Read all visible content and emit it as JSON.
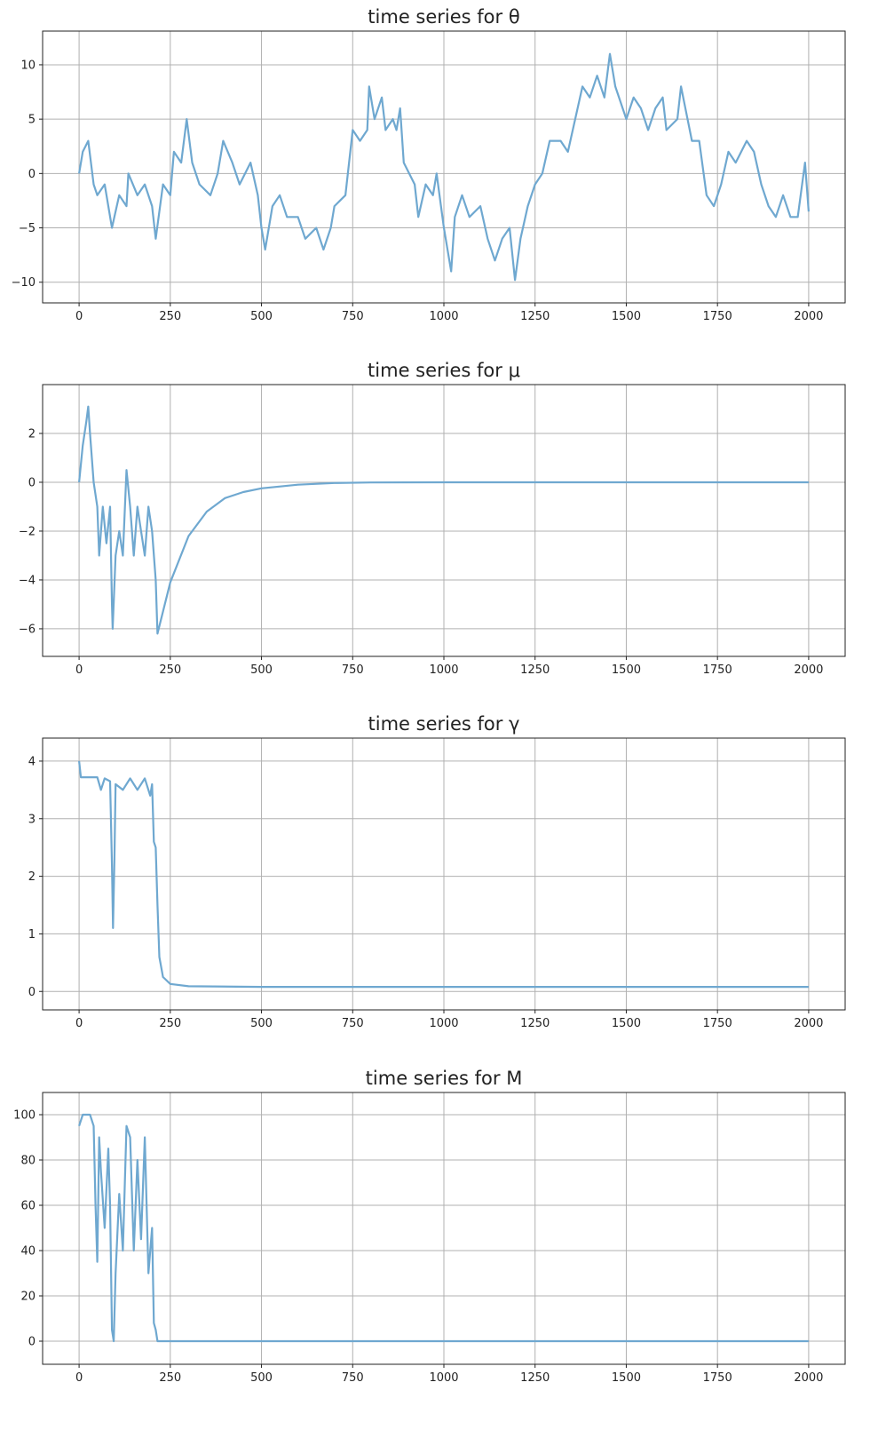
{
  "chart_data": [
    {
      "type": "line",
      "title": "time series for θ",
      "color": "#6fa8d0",
      "x": [
        0,
        10,
        25,
        40,
        50,
        70,
        90,
        110,
        130,
        135,
        160,
        180,
        200,
        210,
        230,
        250,
        260,
        280,
        295,
        310,
        330,
        360,
        380,
        395,
        420,
        440,
        470,
        490,
        500,
        510,
        530,
        550,
        570,
        600,
        620,
        650,
        670,
        690,
        700,
        730,
        750,
        770,
        790,
        795,
        810,
        830,
        840,
        860,
        870,
        880,
        890,
        920,
        930,
        950,
        970,
        980,
        1000,
        1020,
        1030,
        1050,
        1070,
        1100,
        1120,
        1140,
        1160,
        1180,
        1195,
        1210,
        1230,
        1250,
        1270,
        1290,
        1320,
        1340,
        1360,
        1380,
        1400,
        1420,
        1440,
        1455,
        1470,
        1500,
        1520,
        1540,
        1560,
        1580,
        1600,
        1610,
        1640,
        1650,
        1680,
        1700,
        1720,
        1740,
        1760,
        1780,
        1800,
        1830,
        1850,
        1870,
        1890,
        1910,
        1930,
        1950,
        1970,
        1990,
        2000
      ],
      "values": [
        0,
        2,
        3,
        -1,
        -2,
        -1,
        -5,
        -2,
        -3,
        0,
        -2,
        -1,
        -3,
        -6,
        -1,
        -2,
        2,
        1,
        5,
        1,
        -1,
        -2,
        0,
        3,
        1,
        -1,
        1,
        -2,
        -5,
        -7,
        -3,
        -2,
        -4,
        -4,
        -6,
        -5,
        -7,
        -5,
        -3,
        -2,
        4,
        3,
        4,
        8,
        5,
        7,
        4,
        5,
        4,
        6,
        1,
        -1,
        -4,
        -1,
        -2,
        0,
        -5,
        -9,
        -4,
        -2,
        -4,
        -3,
        -6,
        -8,
        -6,
        -5,
        -9.8,
        -6,
        -3,
        -1,
        0,
        3,
        3,
        2,
        5,
        8,
        7,
        9,
        7,
        11,
        8,
        5,
        7,
        6,
        4,
        6,
        7,
        4,
        5,
        8,
        3,
        3,
        -2,
        -3,
        -1,
        2,
        1,
        3,
        2,
        -1,
        -3,
        -4,
        -2,
        -4,
        -4,
        1,
        -3.5
      ],
      "xlim": [
        -100,
        2100
      ],
      "ylim": [
        -11.9,
        13.1
      ],
      "xticks": [
        0,
        250,
        500,
        750,
        1000,
        1250,
        1500,
        1750,
        2000
      ],
      "yticks": [
        -10,
        -5,
        0,
        5,
        10
      ],
      "grid": true
    },
    {
      "type": "line",
      "title": "time series for μ",
      "color": "#6fa8d0",
      "x": [
        0,
        10,
        20,
        25,
        30,
        40,
        50,
        55,
        65,
        75,
        85,
        90,
        92,
        100,
        110,
        120,
        130,
        140,
        150,
        160,
        170,
        180,
        190,
        200,
        210,
        215,
        250,
        300,
        350,
        400,
        450,
        500,
        600,
        700,
        800,
        1000,
        2000
      ],
      "values": [
        0,
        1.5,
        2.5,
        3.1,
        2,
        0,
        -1,
        -3,
        -1,
        -2.5,
        -1,
        -5,
        -6,
        -3,
        -2,
        -3,
        0.5,
        -1,
        -3,
        -1,
        -2,
        -3,
        -1,
        -2,
        -4,
        -6.2,
        -4.1,
        -2.2,
        -1.2,
        -0.65,
        -0.4,
        -0.25,
        -0.1,
        -0.03,
        -0.01,
        0,
        0
      ],
      "xlim": [
        -100,
        2100
      ],
      "ylim": [
        -7.13,
        4.0
      ],
      "xticks": [
        0,
        250,
        500,
        750,
        1000,
        1250,
        1500,
        1750,
        2000
      ],
      "yticks": [
        -6,
        -4,
        -2,
        0,
        2
      ],
      "grid": true
    },
    {
      "type": "line",
      "title": "time series for γ",
      "color": "#6fa8d0",
      "x": [
        0,
        5,
        50,
        60,
        70,
        85,
        90,
        93,
        97,
        100,
        120,
        140,
        160,
        180,
        195,
        200,
        205,
        210,
        215,
        220,
        230,
        250,
        300,
        500,
        2000
      ],
      "values": [
        4,
        3.72,
        3.72,
        3.5,
        3.7,
        3.65,
        2.2,
        1.1,
        2.3,
        3.6,
        3.5,
        3.7,
        3.5,
        3.7,
        3.4,
        3.6,
        2.6,
        2.5,
        1.5,
        0.6,
        0.25,
        0.13,
        0.09,
        0.08,
        0.08
      ],
      "xlim": [
        -100,
        2100
      ],
      "ylim": [
        -0.32,
        4.4
      ],
      "xticks": [
        0,
        250,
        500,
        750,
        1000,
        1250,
        1500,
        1750,
        2000
      ],
      "yticks": [
        0,
        1,
        2,
        3,
        4
      ],
      "grid": true
    },
    {
      "type": "line",
      "title": "time series for M",
      "color": "#6fa8d0",
      "x": [
        0,
        10,
        30,
        40,
        45,
        50,
        55,
        60,
        70,
        80,
        85,
        90,
        95,
        100,
        110,
        120,
        130,
        140,
        150,
        160,
        170,
        180,
        190,
        200,
        205,
        210,
        215,
        2000
      ],
      "values": [
        95,
        100,
        100,
        95,
        60,
        35,
        90,
        75,
        50,
        85,
        60,
        5,
        0,
        30,
        65,
        40,
        95,
        90,
        40,
        80,
        45,
        90,
        30,
        50,
        8,
        5,
        0,
        0
      ],
      "xlim": [
        -100,
        2100
      ],
      "ylim": [
        -10.2,
        109.8
      ],
      "xticks": [
        0,
        250,
        500,
        750,
        1000,
        1250,
        1500,
        1750,
        2000
      ],
      "yticks": [
        0,
        20,
        40,
        60,
        80,
        100
      ],
      "grid": true
    }
  ]
}
